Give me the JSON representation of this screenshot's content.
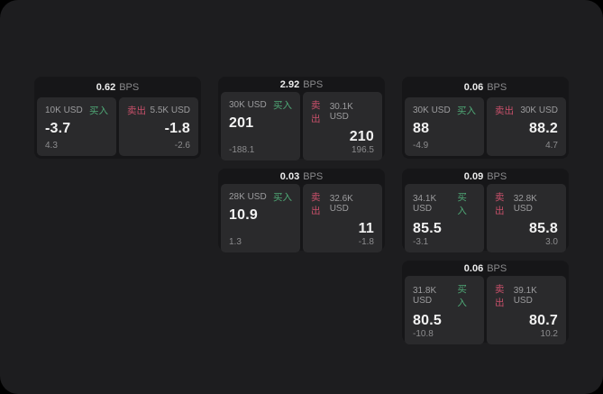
{
  "labels": {
    "bps_unit": "BPS",
    "buy": "买入",
    "sell": "卖出"
  },
  "colors": {
    "buy": "#4fa876",
    "sell": "#c8506a",
    "panel_background": "#1d1d1f",
    "card_background": "#161618",
    "tile_background": "#2a2a2c"
  },
  "cards": [
    {
      "bps": "0.62",
      "buy": {
        "amount": "10K USD",
        "price": "-3.7",
        "change": "4.3"
      },
      "sell": {
        "amount": "5.5K USD",
        "price": "-1.8",
        "change": "-2.6"
      }
    },
    {
      "bps": "2.92",
      "buy": {
        "amount": "30K USD",
        "price": "201",
        "change": "-188.1"
      },
      "sell": {
        "amount": "30.1K USD",
        "price": "210",
        "change": "196.5"
      }
    },
    {
      "bps": "0.06",
      "buy": {
        "amount": "30K USD",
        "price": "88",
        "change": "-4.9"
      },
      "sell": {
        "amount": "30K USD",
        "price": "88.2",
        "change": "4.7"
      }
    },
    {
      "bps": "0.03",
      "buy": {
        "amount": "28K USD",
        "price": "10.9",
        "change": "1.3"
      },
      "sell": {
        "amount": "32.6K USD",
        "price": "11",
        "change": "-1.8"
      }
    },
    {
      "bps": "0.09",
      "buy": {
        "amount": "34.1K USD",
        "price": "85.5",
        "change": "-3.1"
      },
      "sell": {
        "amount": "32.8K USD",
        "price": "85.8",
        "change": "3.0"
      }
    },
    {
      "bps": "0.06",
      "buy": {
        "amount": "31.8K USD",
        "price": "80.5",
        "change": "-10.8"
      },
      "sell": {
        "amount": "39.1K USD",
        "price": "80.7",
        "change": "10.2"
      }
    }
  ]
}
